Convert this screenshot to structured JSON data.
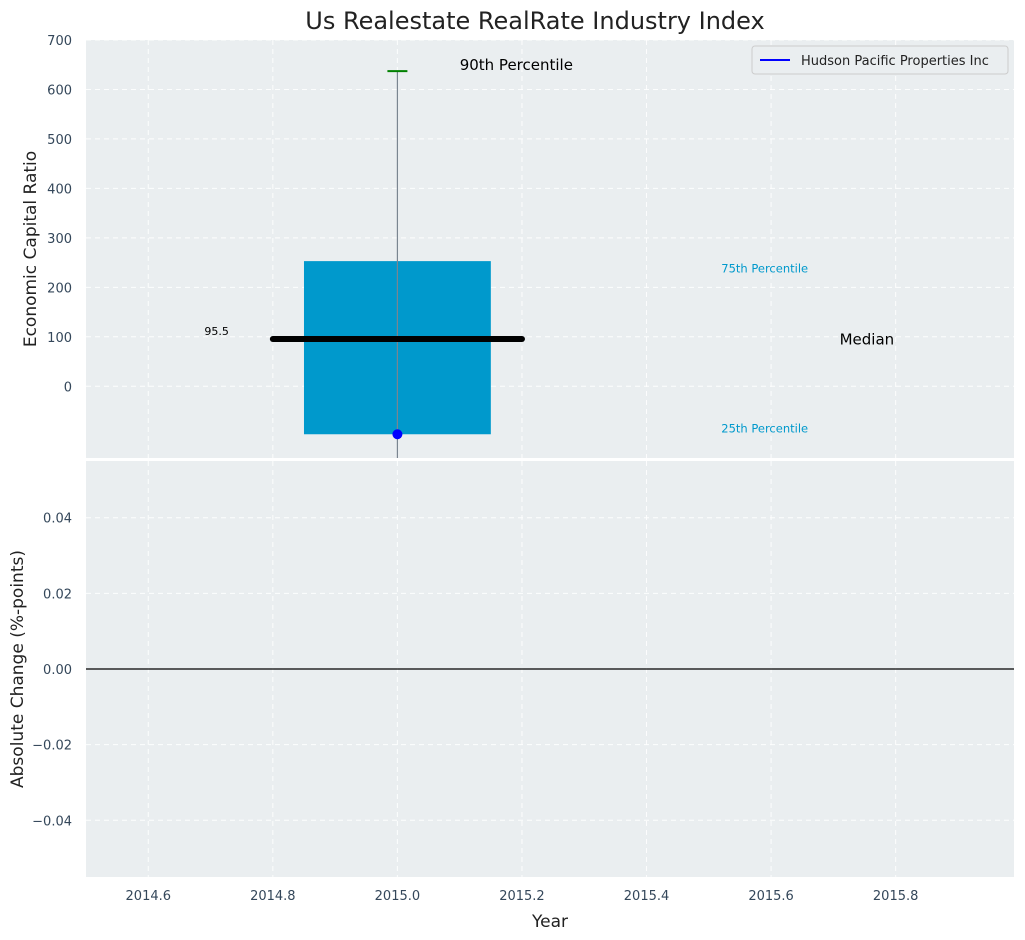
{
  "chart_data": [
    {
      "type": "box",
      "title": "Us Realestate RealRate Industry Index",
      "ylabel": "Economic Capital Ratio",
      "ylim": [
        -145,
        700
      ],
      "yticks": [
        0,
        100,
        200,
        300,
        400,
        500,
        600,
        700
      ],
      "xlim": [
        2014.5,
        2015.99
      ],
      "grid": true,
      "box": {
        "x": 2015.0,
        "width": 0.3,
        "q25": -97,
        "q75": 253,
        "median": 95.5,
        "p90": 637,
        "whisker_bottom": -145,
        "color": "#0099cc",
        "p90_color": "#008000",
        "median_color": "#000000"
      },
      "series": [
        {
          "name": "Hudson Pacific Properties Inc",
          "color": "#0000ff",
          "x": [
            2015.0
          ],
          "y": [
            -97
          ]
        }
      ],
      "legend": {
        "position": "top-right",
        "label": "Hudson Pacific Properties Inc"
      },
      "annotations": [
        {
          "id": "p90",
          "text": "90th Percentile",
          "x": 2015.1,
          "y": 650,
          "color": "#000000"
        },
        {
          "id": "p75",
          "text": "75th Percentile",
          "x": 2015.52,
          "y": 238,
          "color": "#0099cc"
        },
        {
          "id": "median",
          "text": "Median",
          "x": 2015.71,
          "y": 95,
          "color": "#000000"
        },
        {
          "id": "p25",
          "text": "25th Percentile",
          "x": 2015.52,
          "y": -85,
          "color": "#0099cc"
        },
        {
          "id": "median-value",
          "text": "95.5",
          "x": 2014.69,
          "y": 112,
          "color": "#000000"
        }
      ]
    },
    {
      "type": "line",
      "ylabel": "Absolute Change (%-points)",
      "xlabel": "Year",
      "ylim": [
        -0.055,
        0.055
      ],
      "yticks": [
        "−0.04",
        "−0.02",
        "0.00",
        "0.02",
        "0.04"
      ],
      "ytick_values": [
        -0.04,
        -0.02,
        0,
        0.02,
        0.04
      ],
      "xlim": [
        2014.5,
        2015.99
      ],
      "xticks": [
        "2014.6",
        "2014.8",
        "2015.0",
        "2015.2",
        "2015.4",
        "2015.6",
        "2015.8"
      ],
      "xtick_values": [
        2014.6,
        2014.8,
        2015.0,
        2015.2,
        2015.4,
        2015.6,
        2015.8
      ],
      "grid": true,
      "zero_line": 0
    }
  ]
}
